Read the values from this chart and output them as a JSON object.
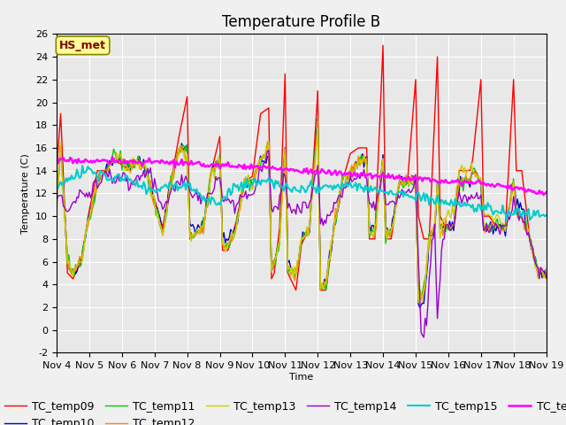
{
  "title": "Temperature Profile B",
  "xlabel": "Time",
  "ylabel": "Temperature (C)",
  "ylim": [
    -2,
    26
  ],
  "xlim": [
    0,
    360
  ],
  "x_tick_labels": [
    "Nov 4",
    "Nov 5",
    "Nov 6",
    "Nov 7",
    "Nov 8",
    "Nov 9",
    "Nov 10",
    "Nov 11",
    "Nov 12",
    "Nov 13",
    "Nov 14",
    "Nov 15",
    "Nov 16",
    "Nov 17",
    "Nov 18",
    "Nov 19"
  ],
  "x_tick_positions": [
    0,
    24,
    48,
    72,
    96,
    120,
    144,
    168,
    192,
    216,
    240,
    264,
    288,
    312,
    336,
    360
  ],
  "yticks": [
    -2,
    0,
    2,
    4,
    6,
    8,
    10,
    12,
    14,
    16,
    18,
    20,
    22,
    24,
    26
  ],
  "series_colors": {
    "TC_temp09": "#ff0000",
    "TC_temp10": "#0000cc",
    "TC_temp11": "#00cc00",
    "TC_temp12": "#ff8800",
    "TC_temp13": "#cccc00",
    "TC_temp14": "#9900cc",
    "TC_temp15": "#00cccc",
    "TC_temp16": "#ff00ff"
  },
  "annotation_text": "HS_met",
  "annotation_color": "#880000",
  "annotation_bg": "#ffff99",
  "background_color": "#e8e8e8",
  "grid_color": "#ffffff",
  "title_fontsize": 12,
  "legend_fontsize": 9,
  "axis_fontsize": 8,
  "linewidth": 1.0
}
